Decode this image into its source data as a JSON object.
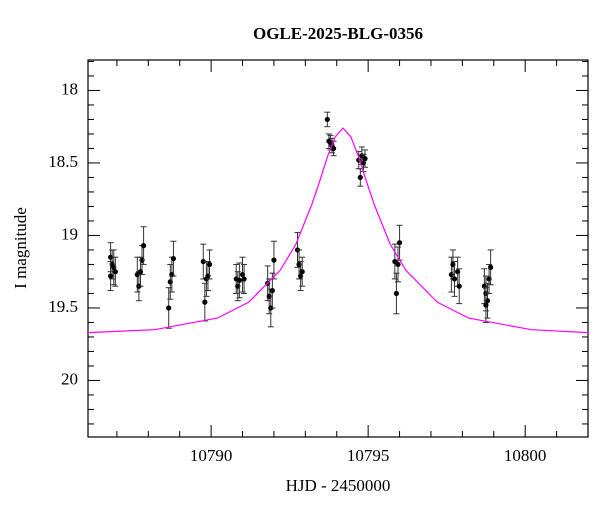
{
  "chart_data": {
    "type": "scatter",
    "title": "OGLE-2025-BLG-0356",
    "xlabel": "HJD - 2450000",
    "ylabel": "I magnitude",
    "xlim": [
      10786.08,
      10802.0
    ],
    "ylim": [
      20.39,
      17.79
    ],
    "xticks": [
      10790,
      10795,
      10800
    ],
    "yticks": [
      18,
      18.5,
      19,
      19.5,
      20
    ],
    "xminor": [
      10787,
      10788,
      10789,
      10791,
      10792,
      10793,
      10794,
      10796,
      10797,
      10798,
      10799,
      10801
    ],
    "yminor": [
      17.8,
      17.9,
      18.1,
      18.2,
      18.3,
      18.4,
      18.6,
      18.7,
      18.8,
      18.9,
      19.1,
      19.2,
      19.3,
      19.4,
      19.6,
      19.7,
      19.8,
      19.9,
      20.1,
      20.2,
      20.3
    ],
    "series": [
      {
        "type": "scatter",
        "color": "#000000",
        "x": [
          10786.8,
          10786.85,
          10786.9,
          10786.95,
          10786.8,
          10787.65,
          10787.7,
          10787.8,
          10787.85,
          10787.75,
          10788.65,
          10788.7,
          10788.75,
          10788.8,
          10789.75,
          10789.8,
          10789.85,
          10789.9,
          10789.95,
          10790.8,
          10790.85,
          10790.9,
          10791.0,
          10791.05,
          10791.8,
          10791.85,
          10791.9,
          10791.95,
          10792.0,
          10792.75,
          10792.8,
          10792.85,
          10792.9,
          10793.7,
          10793.75,
          10793.8,
          10793.85,
          10793.9,
          10794.7,
          10794.75,
          10794.8,
          10794.85,
          10794.9,
          10795.85,
          10795.9,
          10795.95,
          10796.0,
          10797.65,
          10797.7,
          10797.75,
          10797.85,
          10797.9,
          10798.7,
          10798.75,
          10798.8,
          10798.85,
          10798.9,
          10798.75
        ],
        "values": [
          19.15,
          19.2,
          19.22,
          19.25,
          19.28,
          19.27,
          19.35,
          19.17,
          19.07,
          19.25,
          19.5,
          19.32,
          19.27,
          19.16,
          19.18,
          19.46,
          19.3,
          19.28,
          19.2,
          19.3,
          19.35,
          19.31,
          19.27,
          19.3,
          19.33,
          19.42,
          19.5,
          19.38,
          19.17,
          19.1,
          19.2,
          19.28,
          19.25,
          18.2,
          18.35,
          18.36,
          18.38,
          18.4,
          18.48,
          18.6,
          18.45,
          18.5,
          18.47,
          19.18,
          19.4,
          19.2,
          19.05,
          19.27,
          19.2,
          19.3,
          19.25,
          19.35,
          19.35,
          19.4,
          19.45,
          19.3,
          19.22,
          19.48
        ],
        "errors": [
          0.1,
          0.1,
          0.12,
          0.1,
          0.1,
          0.12,
          0.1,
          0.1,
          0.13,
          0.1,
          0.14,
          0.12,
          0.12,
          0.12,
          0.12,
          0.13,
          0.12,
          0.1,
          0.1,
          0.1,
          0.1,
          0.12,
          0.12,
          0.1,
          0.12,
          0.12,
          0.13,
          0.12,
          0.13,
          0.12,
          0.1,
          0.1,
          0.1,
          0.05,
          0.05,
          0.05,
          0.05,
          0.05,
          0.06,
          0.06,
          0.06,
          0.06,
          0.06,
          0.12,
          0.14,
          0.12,
          0.12,
          0.12,
          0.1,
          0.12,
          0.1,
          0.12,
          0.12,
          0.12,
          0.12,
          0.1,
          0.12,
          0.12
        ]
      },
      {
        "type": "line",
        "color": "#ff00ff",
        "x": [
          10786.08,
          10788.2,
          10790.2,
          10791.2,
          10792.2,
          10792.7,
          10793.2,
          10793.45,
          10793.7,
          10793.95,
          10794.2,
          10794.45,
          10794.7,
          10794.95,
          10795.2,
          10795.7,
          10796.2,
          10797.2,
          10798.2,
          10800.2,
          10802.0
        ],
        "values": [
          19.67,
          19.65,
          19.57,
          19.46,
          19.24,
          19.06,
          18.79,
          18.63,
          18.46,
          18.32,
          18.26,
          18.32,
          18.46,
          18.63,
          18.79,
          19.06,
          19.24,
          19.46,
          19.57,
          19.65,
          19.67
        ]
      }
    ]
  }
}
